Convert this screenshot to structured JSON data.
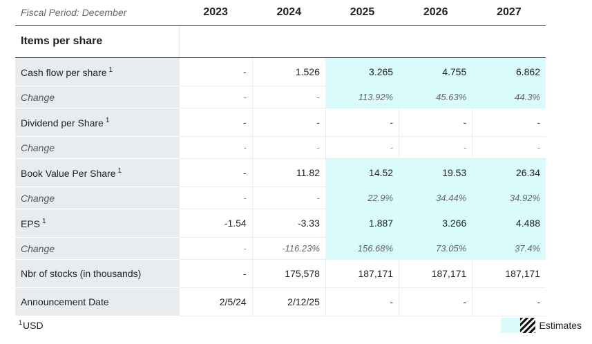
{
  "header": {
    "fiscal_period": "Fiscal Period: December",
    "years": [
      "2023",
      "2024",
      "2025",
      "2026",
      "2027"
    ]
  },
  "section_title": "Items per share",
  "rows": [
    {
      "label": "Cash flow per share",
      "sup": "1",
      "kind": "main",
      "values": [
        "-",
        "1.526",
        "3.265",
        "4.755",
        "6.862"
      ],
      "estimate": [
        false,
        false,
        true,
        true,
        true
      ]
    },
    {
      "label": "Change",
      "sup": "",
      "kind": "chg",
      "values": [
        "-",
        "-",
        "113.92%",
        "45.63%",
        "44.3%"
      ],
      "estimate": [
        false,
        false,
        true,
        true,
        true
      ]
    },
    {
      "label": "Dividend per Share",
      "sup": "1",
      "kind": "main",
      "values": [
        "-",
        "-",
        "-",
        "-",
        "-"
      ],
      "estimate": [
        false,
        false,
        false,
        false,
        false
      ]
    },
    {
      "label": "Change",
      "sup": "",
      "kind": "chg",
      "values": [
        "-",
        "-",
        "-",
        "-",
        "-"
      ],
      "estimate": [
        false,
        false,
        false,
        false,
        false
      ]
    },
    {
      "label": "Book Value Per Share",
      "sup": "1",
      "kind": "main",
      "values": [
        "-",
        "11.82",
        "14.52",
        "19.53",
        "26.34"
      ],
      "estimate": [
        false,
        false,
        true,
        true,
        true
      ]
    },
    {
      "label": "Change",
      "sup": "",
      "kind": "chg",
      "values": [
        "-",
        "-",
        "22.9%",
        "34.44%",
        "34.92%"
      ],
      "estimate": [
        false,
        false,
        true,
        true,
        true
      ]
    },
    {
      "label": "EPS",
      "sup": "1",
      "kind": "main",
      "values": [
        "-1.54",
        "-3.33",
        "1.887",
        "3.266",
        "4.488"
      ],
      "estimate": [
        false,
        false,
        true,
        true,
        true
      ]
    },
    {
      "label": "Change",
      "sup": "",
      "kind": "chg",
      "values": [
        "-",
        "-116.23%",
        "156.68%",
        "73.05%",
        "37.4%"
      ],
      "estimate": [
        false,
        false,
        true,
        true,
        true
      ]
    },
    {
      "label": "Nbr of stocks (in thousands)",
      "sup": "",
      "kind": "main",
      "values": [
        "-",
        "175,578",
        "187,171",
        "187,171",
        "187,171"
      ],
      "estimate": [
        false,
        false,
        false,
        false,
        false
      ]
    },
    {
      "label": "Announcement Date",
      "sup": "",
      "kind": "main",
      "values": [
        "2/5/24",
        "2/12/25",
        "-",
        "-",
        "-"
      ],
      "estimate": [
        false,
        false,
        false,
        false,
        false
      ]
    }
  ],
  "footnote": {
    "sup": "1",
    "text": "USD"
  },
  "legend": {
    "label": "Estimates"
  },
  "colors": {
    "estimate_bg": "#d9fbfb",
    "label_bg": "#e9ecee"
  }
}
